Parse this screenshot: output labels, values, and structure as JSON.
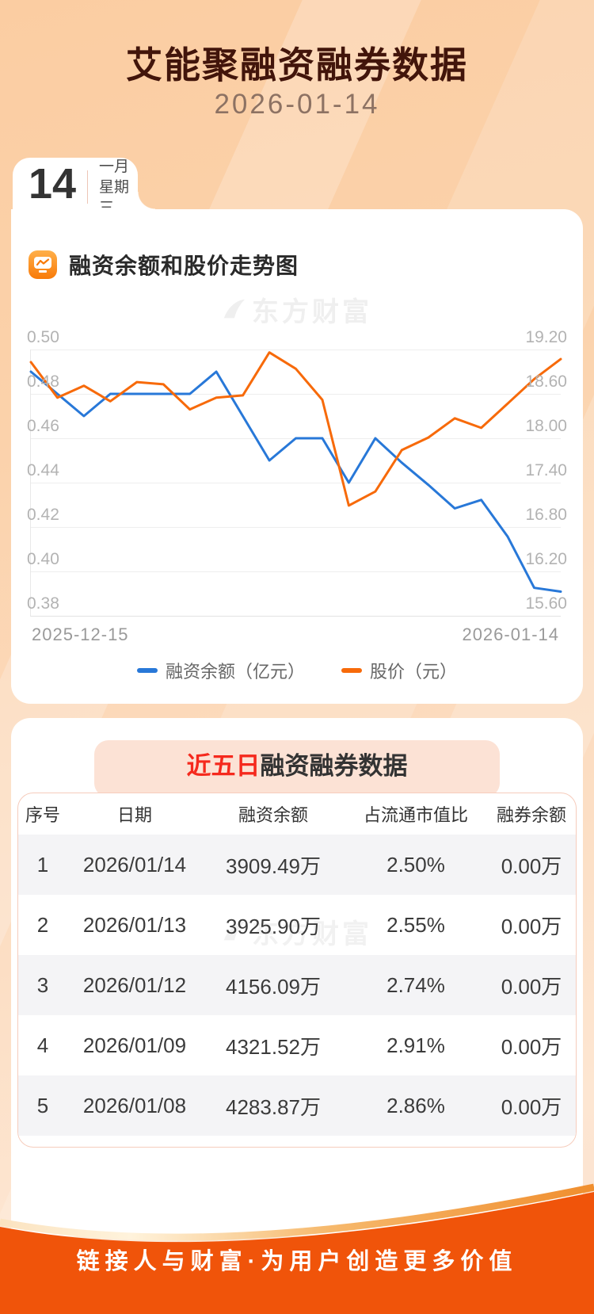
{
  "header": {
    "title": "艾能聚融资融券数据",
    "date": "2026-01-14"
  },
  "date_card": {
    "day": "14",
    "month": "一月",
    "weekday": "星期三"
  },
  "chart_section": {
    "title": "融资余额和股价走势图",
    "watermark": "东方财富"
  },
  "chart_data": {
    "type": "line",
    "title": "融资余额和股价走势图",
    "x_labels": [
      "2025-12-15",
      "2026-01-14"
    ],
    "grid": true,
    "legend_position": "bottom",
    "left_axis": {
      "min": 0.38,
      "max": 0.5,
      "ticks": [
        "0.50",
        "0.48",
        "0.46",
        "0.44",
        "0.42",
        "0.40",
        "0.38"
      ]
    },
    "right_axis": {
      "min": 15.6,
      "max": 19.2,
      "ticks": [
        "19.20",
        "18.60",
        "18.00",
        "17.40",
        "16.80",
        "16.20",
        "15.60"
      ]
    },
    "series": [
      {
        "name": "融资余额（亿元）",
        "axis": "left",
        "color": "#2878d8",
        "values": [
          0.49,
          0.48,
          0.47,
          0.48,
          0.48,
          0.48,
          0.48,
          0.49,
          0.47,
          0.45,
          0.46,
          0.46,
          0.44,
          0.46,
          0.449,
          0.439,
          0.4284,
          0.4322,
          0.4156,
          0.3926,
          0.3909
        ]
      },
      {
        "name": "股价（元）",
        "axis": "right",
        "color": "#f76a0a",
        "values": [
          19.03,
          18.55,
          18.71,
          18.5,
          18.76,
          18.73,
          18.39,
          18.55,
          18.58,
          19.16,
          18.94,
          18.52,
          17.09,
          17.28,
          17.84,
          18.01,
          18.27,
          18.14,
          18.47,
          18.8,
          19.07
        ]
      }
    ]
  },
  "table_section": {
    "title_highlight": "近五日",
    "title_rest": "融资融券数据",
    "watermark": "东方财富",
    "columns": [
      "序号",
      "日期",
      "融资余额",
      "占流通市值比",
      "融券余额"
    ],
    "rows": [
      [
        "1",
        "2026/01/14",
        "3909.49万",
        "2.50%",
        "0.00万"
      ],
      [
        "2",
        "2026/01/13",
        "3925.90万",
        "2.55%",
        "0.00万"
      ],
      [
        "3",
        "2026/01/12",
        "4156.09万",
        "2.74%",
        "0.00万"
      ],
      [
        "4",
        "2026/01/09",
        "4321.52万",
        "2.91%",
        "0.00万"
      ],
      [
        "5",
        "2026/01/08",
        "4283.87万",
        "2.86%",
        "0.00万"
      ]
    ]
  },
  "footer": {
    "slogan": "链接人与财富·为用户创造更多价值"
  },
  "colors": {
    "line_blue": "#2878d8",
    "line_orange": "#f76a0a",
    "footer_bg": "#f0540a",
    "banner_bg": "#fce2d5",
    "highlight_red": "#f5291d",
    "title_brown": "#42150b"
  }
}
